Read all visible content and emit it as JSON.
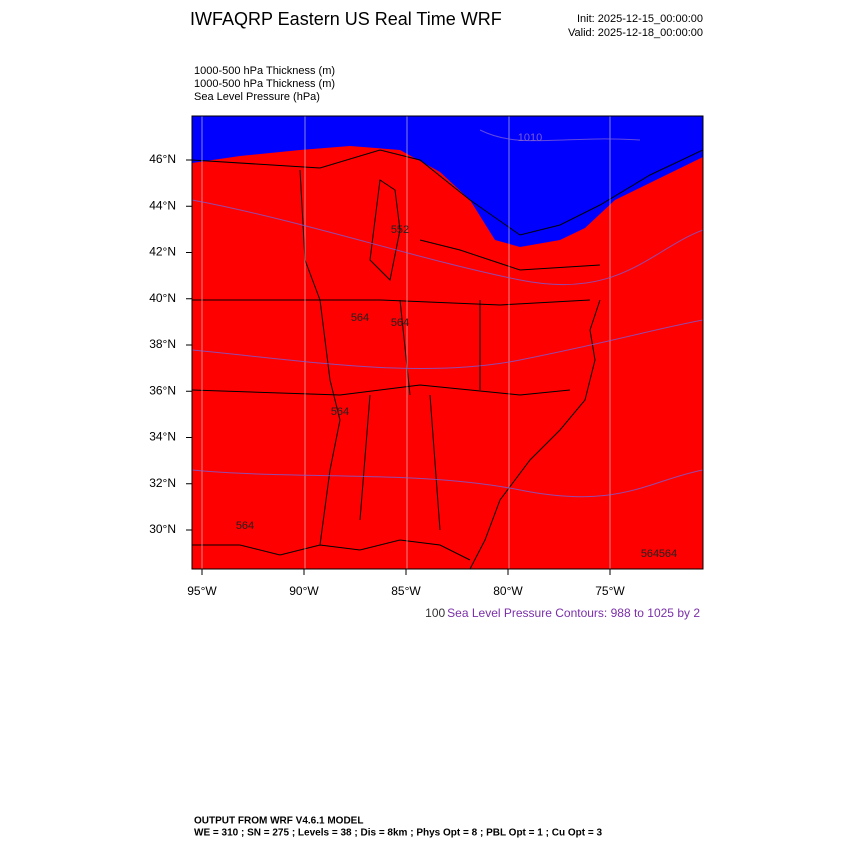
{
  "title": "IWFAQRP Eastern US Real Time WRF",
  "init": "Init: 2025-12-15_00:00:00",
  "valid": "Valid: 2025-12-18_00:00:00",
  "fields": [
    "1000-500 hPa Thickness   (m)",
    "1000-500 hPa Thickness   (m)",
    "Sea Level Pressure   (hPa)"
  ],
  "lat_labels": [
    "46°N",
    "44°N",
    "42°N",
    "40°N",
    "38°N",
    "36°N",
    "34°N",
    "32°N",
    "30°N"
  ],
  "lon_labels": [
    "95°W",
    "90°W",
    "85°W",
    "80°W",
    "75°W"
  ],
  "contour_note_prefix": "100",
  "contour_note": "Sea Level Pressure Contours: 988 to 1025 by 2",
  "contour_labels": [
    "1010",
    "552",
    "564",
    "564",
    "564",
    "564",
    "564",
    "564"
  ],
  "footer": {
    "line1": "OUTPUT FROM WRF V4.6.1 MODEL",
    "line2": "WE = 310 ; SN = 275 ; Levels = 38 ; Dis = 8km ; Phys Opt = 8 ; PBL Opt = 1 ; Cu Opt = 3"
  }
}
